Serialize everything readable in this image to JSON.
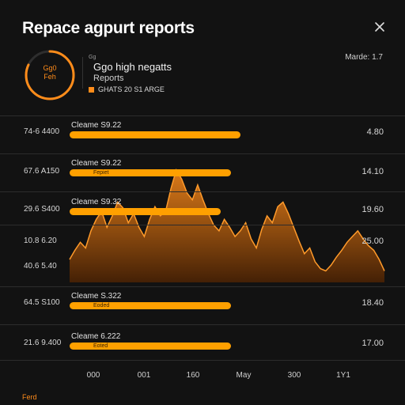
{
  "header": {
    "title": "Repace agpurt reports"
  },
  "gauge": {
    "line1": "Gg0",
    "line2": "Feh",
    "progress": 0.82,
    "color": "#ff8c1a"
  },
  "summary": {
    "pre": "Gg",
    "title": "Ggo high negatts",
    "subtitle": "Reports",
    "line": "GHATS 20 S1 ARGE"
  },
  "meta": "Marde: 1.7",
  "rows": [
    {
      "label": "74-6 4400",
      "value": "4.80"
    },
    {
      "label": "67.6 A150",
      "value": "14.10"
    },
    {
      "label": "29.6 S400",
      "value": "19.60"
    },
    {
      "label": "10.8 6.20",
      "value": "25.00"
    },
    {
      "label": "40.6 5.40",
      "value": ""
    },
    {
      "label": "64.5 S100",
      "value": "18.40"
    },
    {
      "label": "21.6 9.400",
      "value": "17.00"
    }
  ],
  "bars": [
    {
      "label": "Cleame S9.22",
      "cap": "",
      "fraction": 0.51
    },
    {
      "label": "Cleame S9.22",
      "cap": "Fepiet",
      "fraction": 0.48
    },
    {
      "label": "Cleame S9.32",
      "cap": "",
      "fraction": 0.45
    },
    {
      "label": "Cleame S.322",
      "cap": "Eoded",
      "fraction": 0.48
    },
    {
      "label": "Cleame 6.222",
      "cap": "Eoted",
      "fraction": 0.48
    }
  ],
  "chart_data": {
    "type": "area",
    "x": [
      0,
      1,
      2,
      3,
      4,
      5,
      6,
      7,
      8,
      9,
      10,
      11,
      12,
      13,
      14,
      15,
      16,
      17,
      18,
      19,
      20,
      21,
      22,
      23,
      24,
      25,
      26,
      27,
      28,
      29,
      30,
      31,
      32,
      33,
      34,
      35,
      36,
      37,
      38,
      39,
      40,
      41,
      42,
      43,
      44,
      45,
      46,
      47,
      48,
      49,
      50,
      51,
      52,
      53,
      54,
      55,
      56,
      57,
      58,
      59
    ],
    "values": [
      0.2,
      0.28,
      0.35,
      0.3,
      0.45,
      0.55,
      0.62,
      0.48,
      0.58,
      0.7,
      0.65,
      0.52,
      0.6,
      0.48,
      0.4,
      0.55,
      0.66,
      0.58,
      0.62,
      0.82,
      0.98,
      0.9,
      0.78,
      0.72,
      0.85,
      0.72,
      0.6,
      0.5,
      0.45,
      0.55,
      0.48,
      0.4,
      0.45,
      0.52,
      0.38,
      0.3,
      0.46,
      0.58,
      0.52,
      0.66,
      0.7,
      0.6,
      0.48,
      0.36,
      0.25,
      0.3,
      0.18,
      0.12,
      0.1,
      0.15,
      0.22,
      0.28,
      0.35,
      0.4,
      0.45,
      0.38,
      0.32,
      0.28,
      0.2,
      0.1
    ],
    "color": "#ff8c1a",
    "xticks": [
      "000",
      "001",
      "160",
      "May",
      "300",
      "1Y1"
    ]
  },
  "footer": "Ferd"
}
